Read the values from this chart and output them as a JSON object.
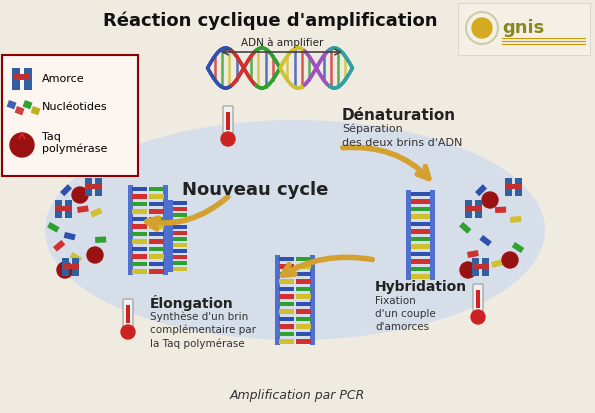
{
  "title": "Réaction cyclique d'amplification",
  "subtitle": "Amplification par PCR",
  "background_color": "#f0ebe0",
  "cloud_color": "#c8d8f0",
  "title_fontsize": 13,
  "subtitle_fontsize": 9,
  "adn_label": "ADN à amplifier",
  "denaturation_title": "Dénaturation",
  "denaturation_sub": "Séparation\ndes deux brins d'ADN",
  "nouveau_cycle": "Nouveau cycle",
  "elongation_title": "Élongation",
  "elongation_sub": "Synthèse d'un brin\ncomplémentaire par\nla Taq polymérase",
  "hybridation_title": "Hybridation",
  "hybridation_sub": "Fixation\nd'un couple\nd'amorces",
  "arrow_color": "#d4a030",
  "dna_colors": [
    "#3050b0",
    "#d03030",
    "#30a030",
    "#d0c030"
  ],
  "strand_color": "#5070d0"
}
